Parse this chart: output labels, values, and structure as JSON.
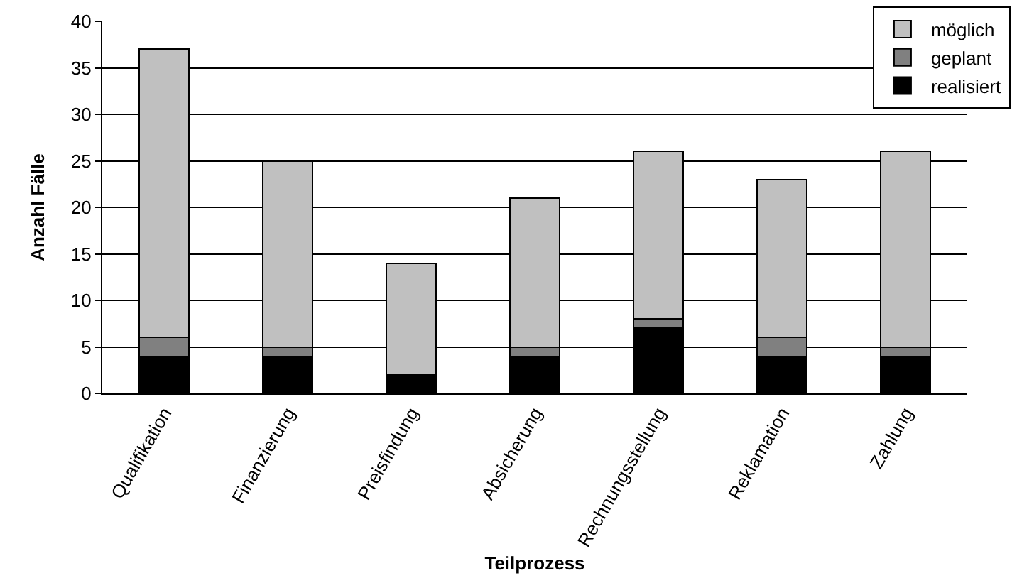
{
  "chart_data": {
    "type": "bar",
    "stacked": true,
    "xlabel": "Teilprozess",
    "ylabel": "Anzahl Fälle",
    "categories": [
      "Qualifikation",
      "Finanzierung",
      "Preisfindung",
      "Absicherung",
      "Rechnungsstellung",
      "Reklamation",
      "Zahlung"
    ],
    "series": [
      {
        "name": "realisiert",
        "color": "#000000",
        "values": [
          4,
          4,
          2,
          4,
          7,
          4,
          4
        ]
      },
      {
        "name": "geplant",
        "color": "#808080",
        "values": [
          2,
          1,
          0,
          1,
          1,
          2,
          1
        ]
      },
      {
        "name": "möglich",
        "color": "#c0c0c0",
        "values": [
          31,
          20,
          12,
          16,
          18,
          17,
          21
        ]
      }
    ],
    "ylim": [
      0,
      40
    ],
    "yticks": [
      0,
      5,
      10,
      15,
      20,
      25,
      30,
      35,
      40
    ],
    "grid": "y",
    "legend": "top right"
  }
}
